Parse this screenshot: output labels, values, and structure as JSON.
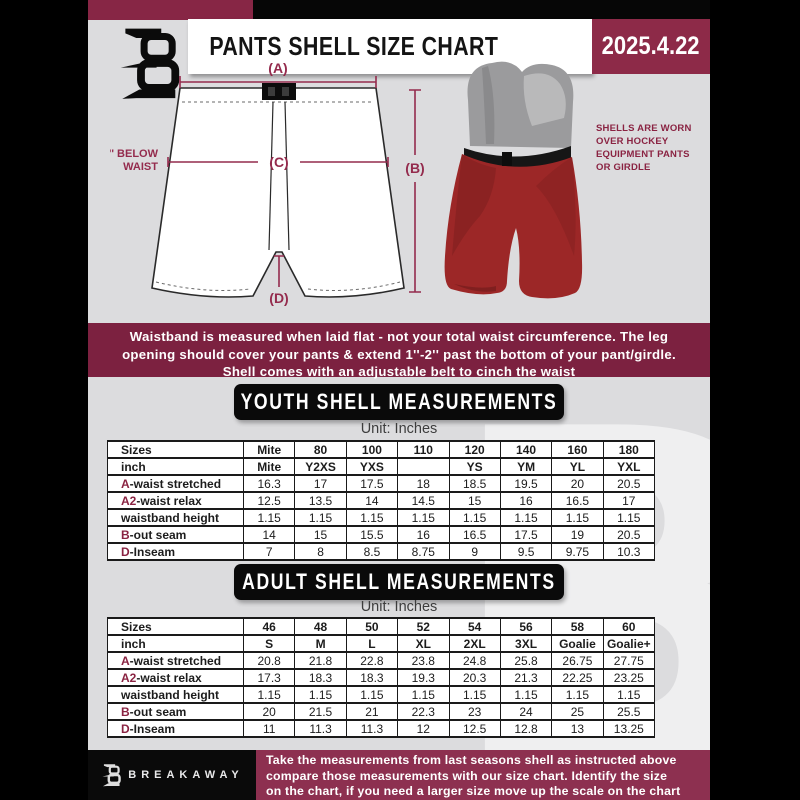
{
  "header": {
    "title": "PANTS SHELL SIZE CHART",
    "date": "2025.4.22"
  },
  "diagram": {
    "label_a": "(A)",
    "label_b": "(B)",
    "label_c": "(C)",
    "label_d": "(D)",
    "below_waist_1": "7'' BELOW",
    "below_waist_2": "WAIST",
    "side_note": [
      "SHELLS ARE WORN",
      "OVER HOCKEY",
      "EQUIPMENT PANTS",
      "OR GIRDLE"
    ]
  },
  "banner": {
    "lines": [
      "Waistband is measured when laid flat - not your total waist circumference. The leg",
      "opening should cover your pants & extend 1''-2'' past the bottom of your pant/girdle.",
      "Shell comes with an adjustable belt to cinch the waist"
    ]
  },
  "youth": {
    "title": "YOUTH SHELL MEASUREMENTS",
    "unit": "Unit: Inches",
    "table": {
      "header_rows": [
        [
          "Sizes",
          "Mite",
          "80",
          "100",
          "110",
          "120",
          "140",
          "160",
          "180"
        ],
        [
          "inch",
          "Mite",
          "Y2XS",
          "YXS",
          "",
          "YS",
          "YM",
          "YL",
          "YXL"
        ]
      ],
      "rows": [
        {
          "prefix": "A",
          "label": "-waist stretched",
          "values": [
            "16.3",
            "17",
            "17.5",
            "18",
            "18.5",
            "19.5",
            "20",
            "20.5"
          ]
        },
        {
          "prefix": "A2",
          "label": "-waist relax",
          "values": [
            "12.5",
            "13.5",
            "14",
            "14.5",
            "15",
            "16",
            "16.5",
            "17"
          ]
        },
        {
          "prefix": "",
          "label": "waistband height",
          "values": [
            "1.15",
            "1.15",
            "1.15",
            "1.15",
            "1.15",
            "1.15",
            "1.15",
            "1.15"
          ]
        },
        {
          "prefix": "B",
          "label": "-out seam",
          "values": [
            "14",
            "15",
            "15.5",
            "16",
            "16.5",
            "17.5",
            "19",
            "20.5"
          ]
        },
        {
          "prefix": "D",
          "label": "-Inseam",
          "values": [
            "7",
            "8",
            "8.5",
            "8.75",
            "9",
            "9.5",
            "9.75",
            "10.3"
          ]
        }
      ]
    }
  },
  "adult": {
    "title": "ADULT SHELL MEASUREMENTS",
    "unit": "Unit: Inches",
    "table": {
      "header_rows": [
        [
          "Sizes",
          "46",
          "48",
          "50",
          "52",
          "54",
          "56",
          "58",
          "60"
        ],
        [
          "inch",
          "S",
          "M",
          "L",
          "XL",
          "2XL",
          "3XL",
          "Goalie",
          "Goalie+"
        ]
      ],
      "rows": [
        {
          "prefix": "A",
          "label": "-waist stretched",
          "values": [
            "20.8",
            "21.8",
            "22.8",
            "23.8",
            "24.8",
            "25.8",
            "26.75",
            "27.75"
          ]
        },
        {
          "prefix": "A2",
          "label": "-waist relax",
          "values": [
            "17.3",
            "18.3",
            "18.3",
            "19.3",
            "20.3",
            "21.3",
            "22.25",
            "23.25"
          ]
        },
        {
          "prefix": "",
          "label": "waistband height",
          "values": [
            "1.15",
            "1.15",
            "1.15",
            "1.15",
            "1.15",
            "1.15",
            "1.15",
            "1.15"
          ]
        },
        {
          "prefix": "B",
          "label": "-out seam",
          "values": [
            "20",
            "21.5",
            "21",
            "22.3",
            "23",
            "24",
            "25",
            "25.5"
          ]
        },
        {
          "prefix": "D",
          "label": "-Inseam",
          "values": [
            "11",
            "11.3",
            "11.3",
            "12",
            "12.5",
            "12.8",
            "13",
            "13.25"
          ]
        }
      ]
    }
  },
  "footer": {
    "brand": "BREAKAWAY",
    "lines": [
      "Take the measurements from last seasons shell as instructed above",
      "compare those measurements  with our size chart. Identify the size",
      "on the chart, if you need a larger size move up the scale on the chart"
    ]
  },
  "colors": {
    "page_bg": "#dcdcde",
    "maroon_banner": "#7c2140",
    "maroon_header": "#872645",
    "maroon_footer": "#8d3050",
    "accent": "#8a2342",
    "shell_red": "#9c2727"
  }
}
